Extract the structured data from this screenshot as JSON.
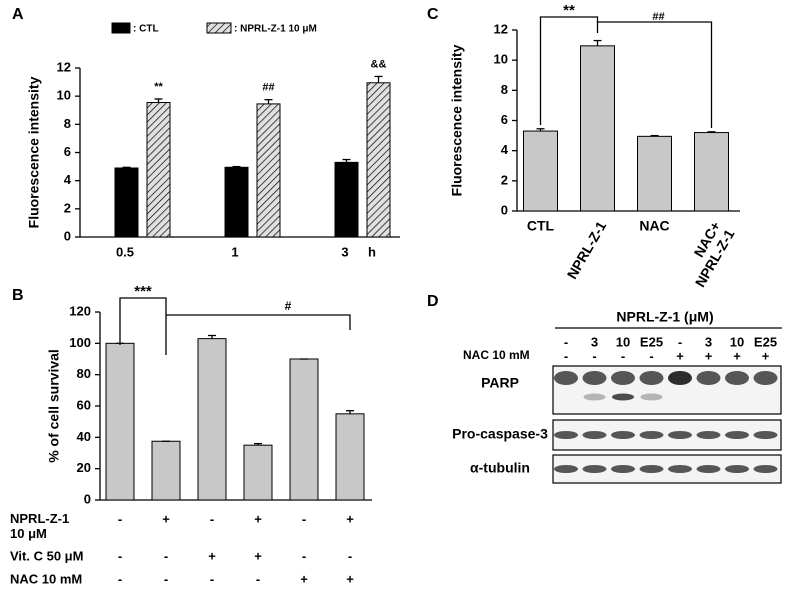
{
  "chart_data": [
    {
      "type": "bar",
      "label": "A",
      "ylabel": "Fluorescence intensity",
      "categories": [
        "0.5",
        "1",
        "3"
      ],
      "xlabel": "h",
      "series": [
        {
          "name": ": CTL",
          "color": "#000000",
          "hatch": false,
          "values": [
            4.9,
            4.95,
            5.3
          ],
          "errors": [
            0.05,
            0.05,
            0.2
          ]
        },
        {
          "name": ": NPRL-Z-1 10 μM",
          "color": "#d0d0d0",
          "hatch": true,
          "values": [
            9.55,
            9.45,
            10.95
          ],
          "errors": [
            0.25,
            0.3,
            0.45
          ]
        }
      ],
      "significance": [
        "**",
        "##",
        "&&"
      ],
      "ylim": [
        0,
        12
      ],
      "yticks": [
        0,
        2,
        4,
        6,
        8,
        10,
        12
      ]
    },
    {
      "type": "bar",
      "label": "B",
      "ylabel": "% of cell survival",
      "values": [
        100,
        37.5,
        103,
        35,
        90,
        55
      ],
      "errors": [
        0,
        0,
        2,
        1,
        0,
        2
      ],
      "color": "#c8c8c8",
      "brackets": [
        "***",
        "#"
      ],
      "conditions": [
        {
          "name": "NPRL-Z-1\n10 μM",
          "signs": [
            "-",
            "+",
            "-",
            "+",
            "-",
            "+"
          ]
        },
        {
          "name": "Vit. C 50 μM",
          "signs": [
            "-",
            "-",
            "+",
            "+",
            "-",
            "-"
          ]
        },
        {
          "name": "NAC 10 mM",
          "signs": [
            "-",
            "-",
            "-",
            "-",
            "+",
            "+"
          ]
        }
      ],
      "ylim": [
        0,
        120
      ],
      "yticks": [
        0,
        20,
        40,
        60,
        80,
        100,
        120
      ]
    },
    {
      "type": "bar",
      "label": "C",
      "ylabel": "Fluorescence intensity",
      "categories": [
        "CTL",
        "NPRL-Z-1",
        "NAC",
        "NAC+\nNPRL-Z-1"
      ],
      "values": [
        5.3,
        10.95,
        4.95,
        5.2
      ],
      "errors": [
        0.15,
        0.35,
        0.05,
        0.05
      ],
      "color": "#c8c8c8",
      "brackets": [
        "**",
        "##"
      ],
      "ylim": [
        0,
        12
      ],
      "yticks": [
        0,
        2,
        4,
        6,
        8,
        10,
        12
      ]
    }
  ],
  "blot": {
    "label": "D",
    "header": "NPRL-Z-1 (μM)",
    "doses": [
      "-",
      "3",
      "10",
      "E25",
      "-",
      "3",
      "10",
      "E25"
    ],
    "nac_label": "NAC 10 mM",
    "nac": [
      "-",
      "-",
      "-",
      "-",
      "+",
      "+",
      "+",
      "+"
    ],
    "bands": [
      "PARP",
      "Pro-caspase-3",
      "α-tubulin"
    ]
  }
}
